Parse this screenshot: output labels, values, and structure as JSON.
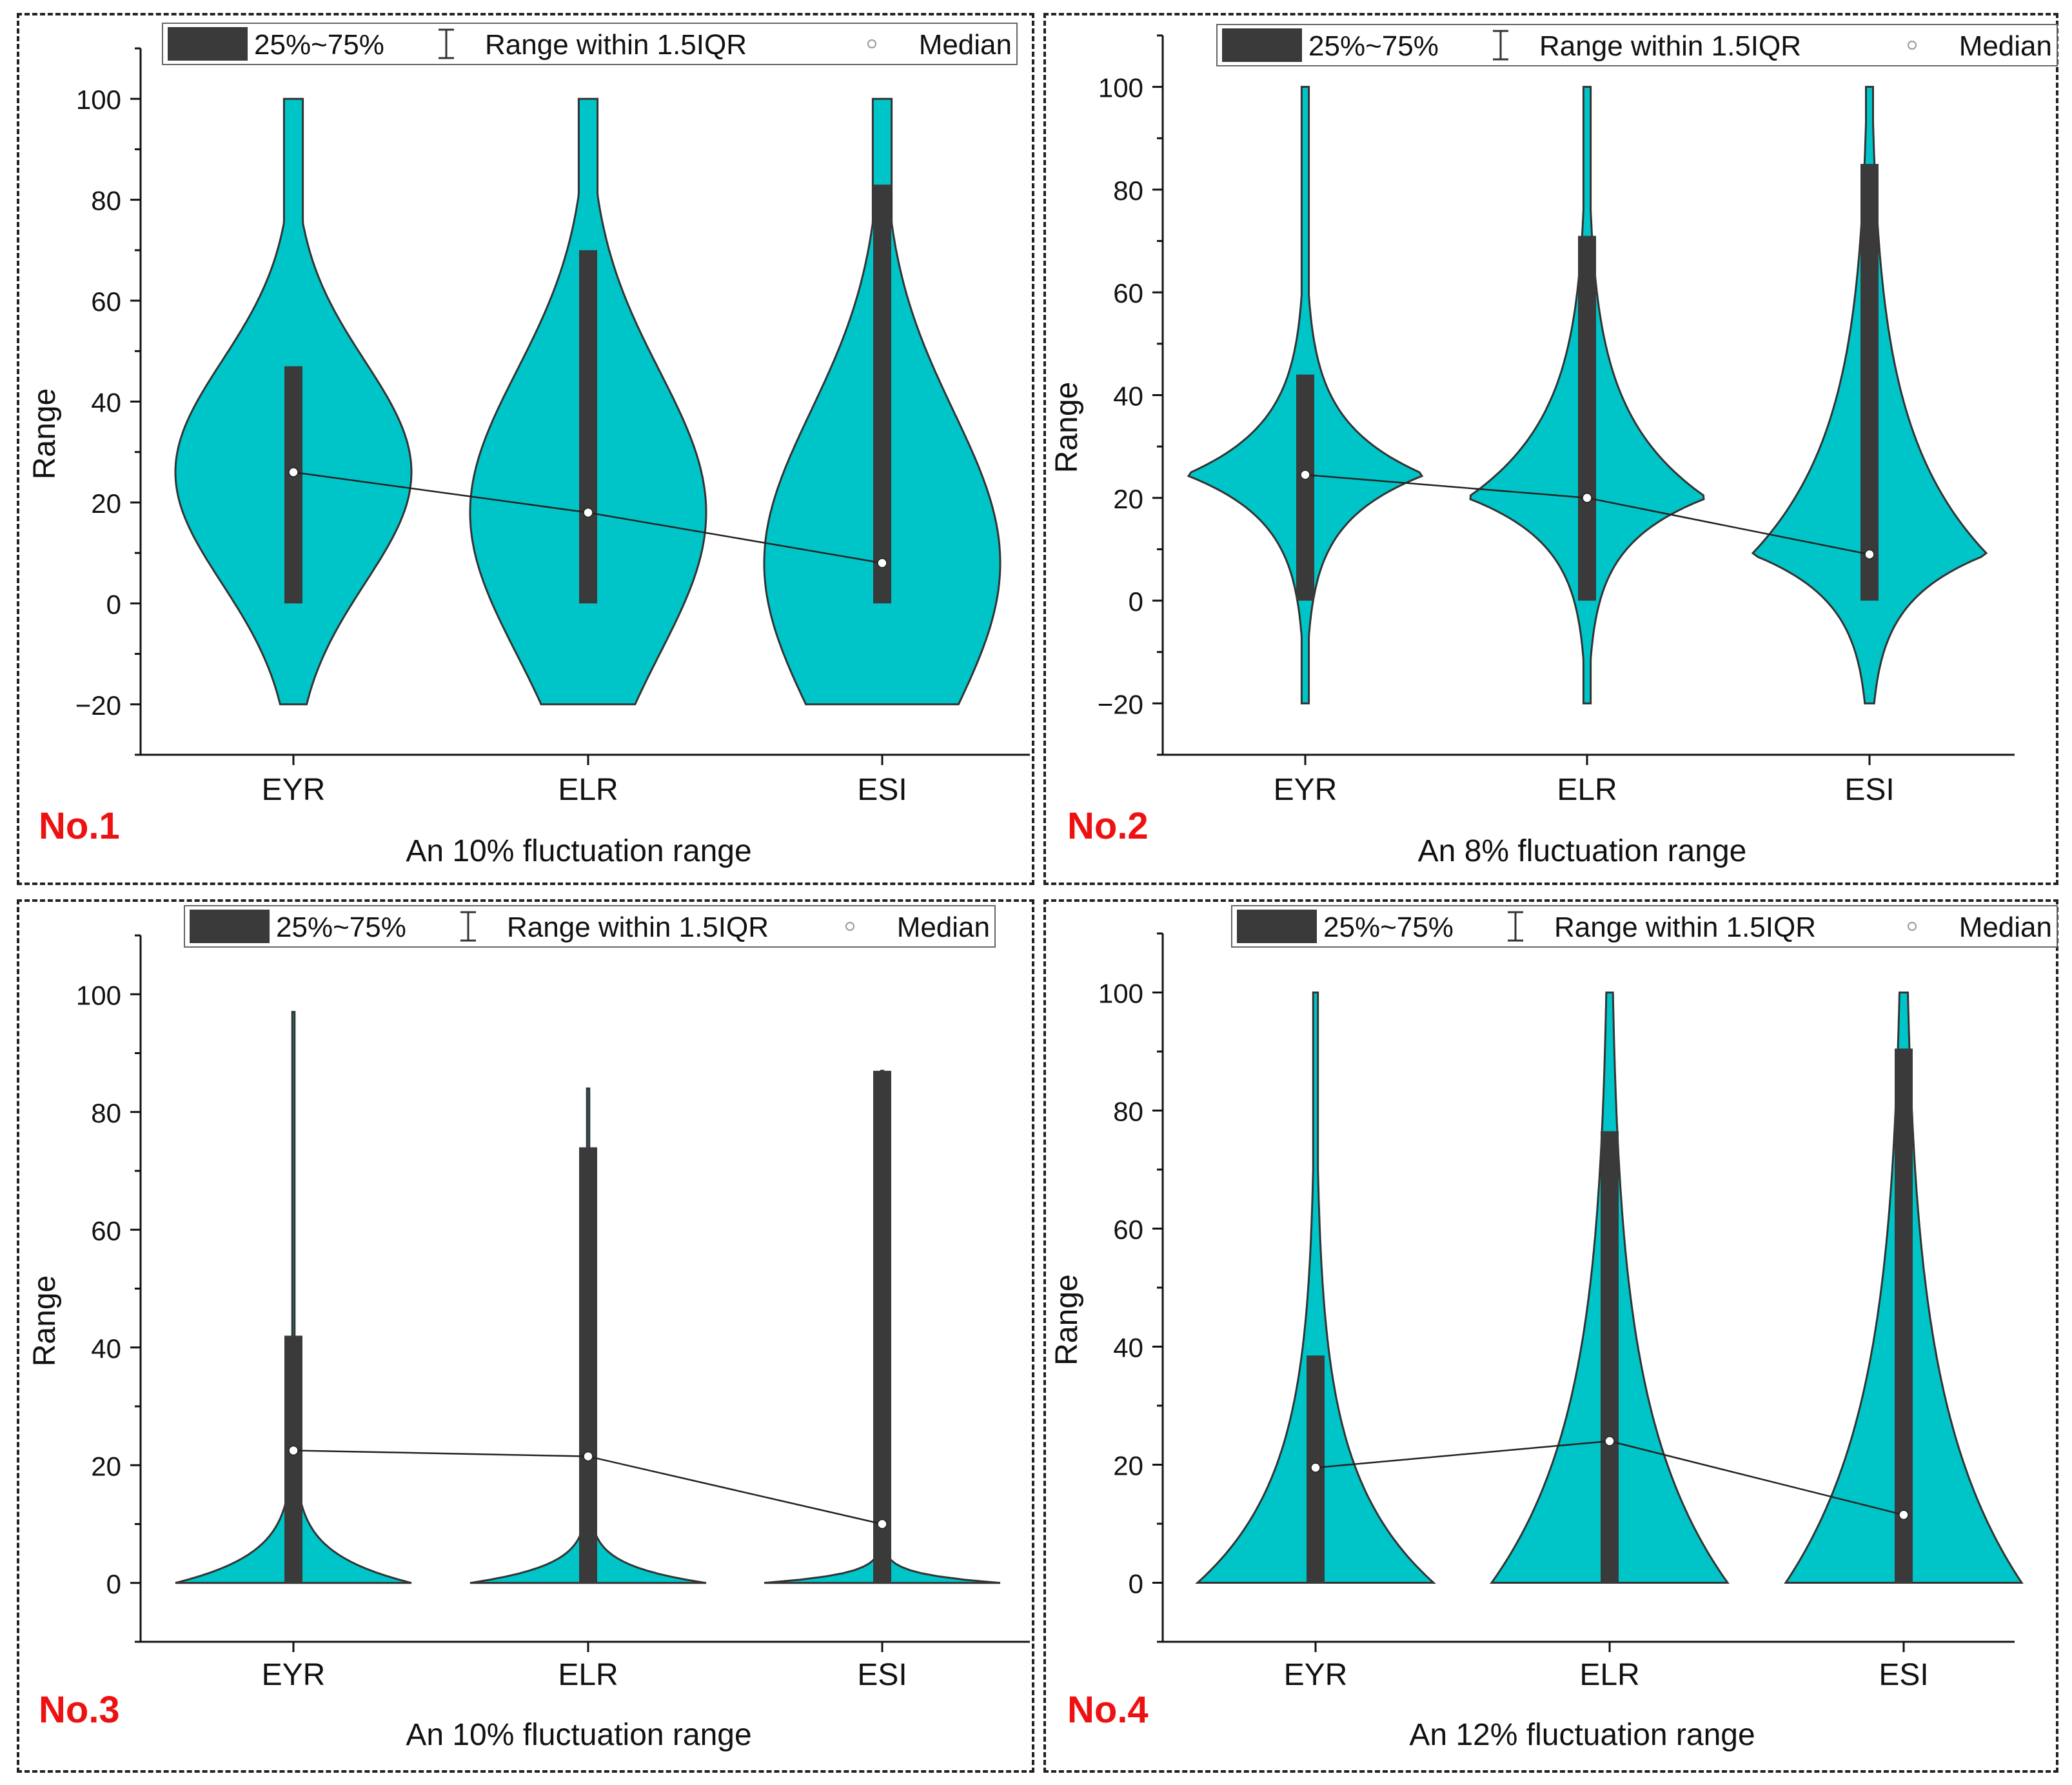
{
  "legend": {
    "box_label": "25%~75%",
    "whisker_label": "Range within 1.5IQR",
    "median_label": "Median"
  },
  "colors": {
    "violin": "#00C5C8",
    "box": "#3a3a3a",
    "outline": "#333333",
    "median": "#ffffff"
  },
  "chart_data": [
    {
      "type": "violin",
      "panel_label": "No.1",
      "xlabel": "An 10% fluctuation range",
      "ylabel": "Range",
      "ylim": [
        -30,
        110
      ],
      "yticks": [
        -20,
        0,
        20,
        40,
        60,
        80,
        100
      ],
      "categories": [
        "EYR",
        "ELR",
        "ESI"
      ],
      "series": [
        {
          "category": "EYR",
          "q1": 0,
          "q3": 47,
          "median": 26,
          "min": -20,
          "max": 100
        },
        {
          "category": "ELR",
          "q1": 0,
          "q3": 70,
          "median": 18,
          "min": -20,
          "max": 100
        },
        {
          "category": "ESI",
          "q1": 0,
          "q3": 83,
          "median": 8,
          "min": -20,
          "max": 100
        }
      ]
    },
    {
      "type": "violin",
      "panel_label": "No.2",
      "xlabel": "An 8% fluctuation range",
      "ylabel": "Range",
      "ylim": [
        -30,
        110
      ],
      "yticks": [
        -20,
        0,
        20,
        40,
        60,
        80,
        100
      ],
      "categories": [
        "EYR",
        "ELR",
        "ESI"
      ],
      "series": [
        {
          "category": "EYR",
          "q1": 0,
          "q3": 44,
          "median": 24.5,
          "min": -20,
          "max": 100
        },
        {
          "category": "ELR",
          "q1": 0,
          "q3": 71,
          "median": 20,
          "min": -20,
          "max": 100
        },
        {
          "category": "ESI",
          "q1": 0,
          "q3": 85,
          "median": 9,
          "min": -20,
          "max": 100
        }
      ]
    },
    {
      "type": "violin",
      "panel_label": "No.3",
      "xlabel": "An 10% fluctuation range",
      "ylabel": "Range",
      "ylim": [
        -10,
        110
      ],
      "yticks": [
        0,
        20,
        40,
        60,
        80,
        100
      ],
      "categories": [
        "EYR",
        "ELR",
        "ESI"
      ],
      "series": [
        {
          "category": "EYR",
          "q1": 0,
          "q3": 42,
          "median": 22.5,
          "min": 0,
          "max": 97
        },
        {
          "category": "ELR",
          "q1": 0,
          "q3": 74,
          "median": 21.5,
          "min": 0,
          "max": 84
        },
        {
          "category": "ESI",
          "q1": 0,
          "q3": 87,
          "median": 10,
          "min": 0,
          "max": 87
        }
      ]
    },
    {
      "type": "violin",
      "panel_label": "No.4",
      "xlabel": "An 12% fluctuation range",
      "ylabel": "Range",
      "ylim": [
        -10,
        110
      ],
      "yticks": [
        0,
        20,
        40,
        60,
        80,
        100
      ],
      "categories": [
        "EYR",
        "ELR",
        "ESI"
      ],
      "series": [
        {
          "category": "EYR",
          "q1": 0,
          "q3": 38.5,
          "median": 19.5,
          "min": 0,
          "max": 100
        },
        {
          "category": "ELR",
          "q1": 0,
          "q3": 76.5,
          "median": 24,
          "min": 0,
          "max": 100
        },
        {
          "category": "ESI",
          "q1": 0,
          "q3": 90.5,
          "median": 11.5,
          "min": 0,
          "max": 100
        }
      ]
    }
  ]
}
